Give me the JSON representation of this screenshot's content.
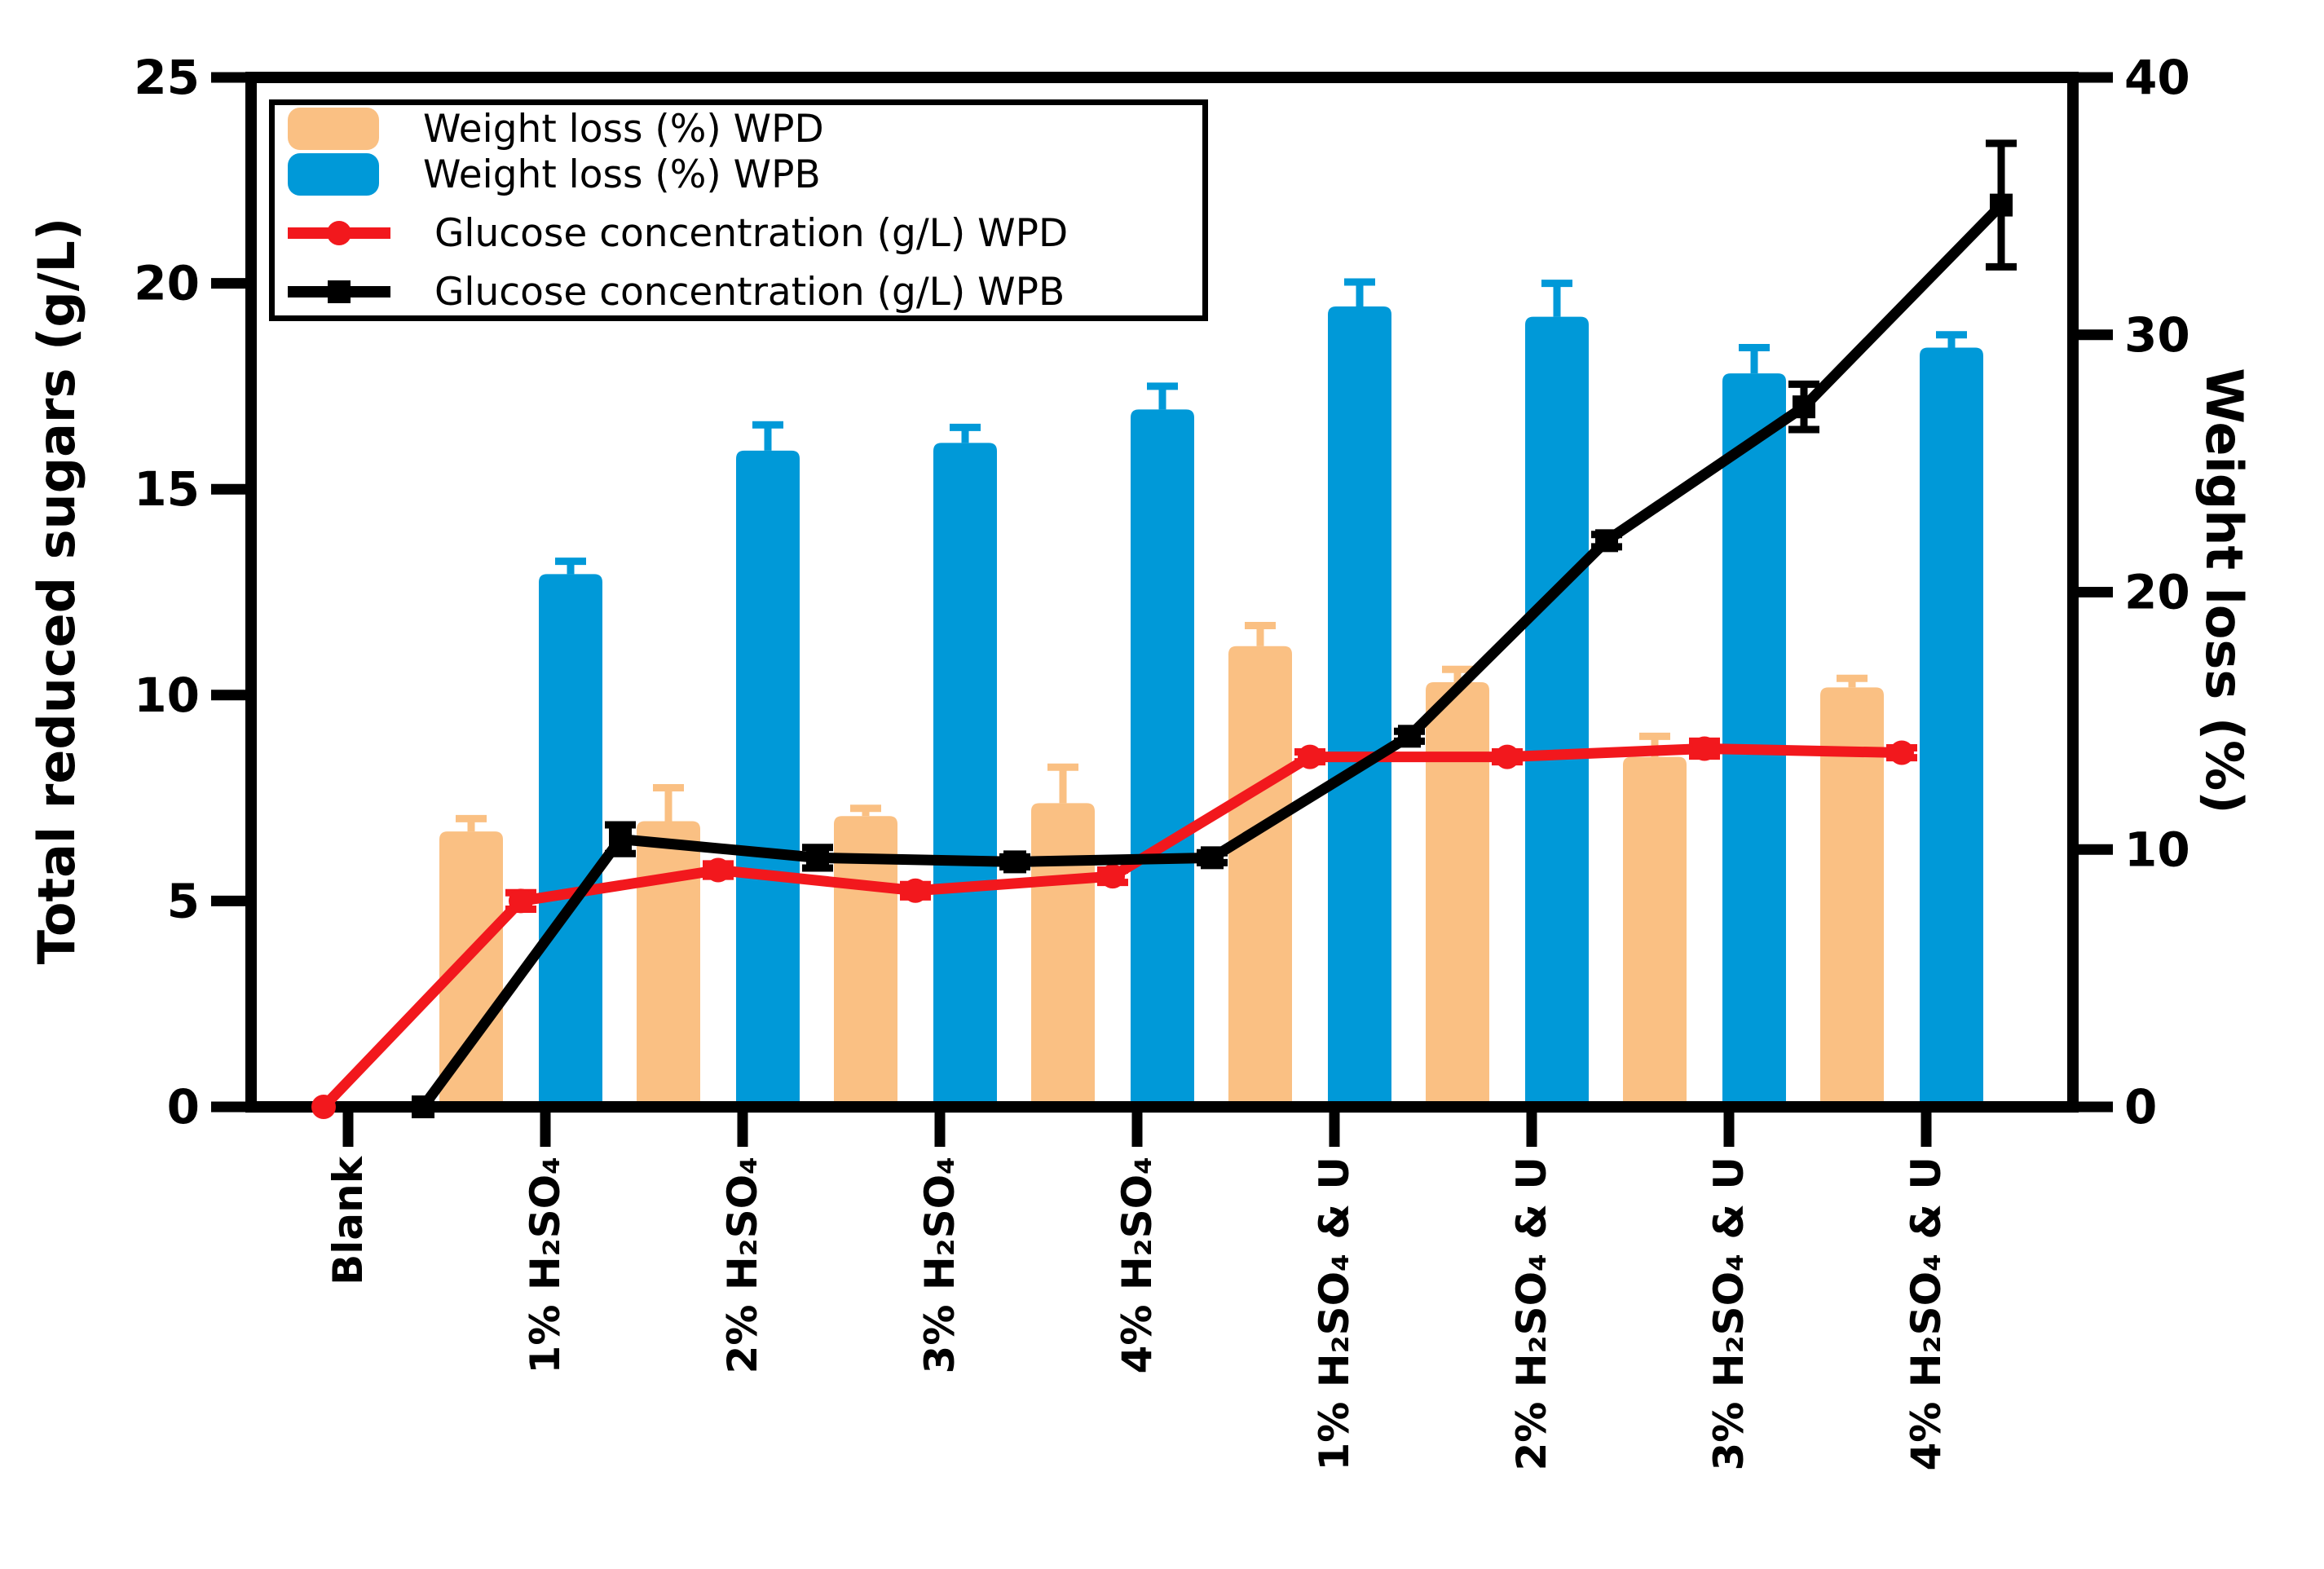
{
  "chart_data": {
    "type": "bar+line",
    "title": "",
    "categories": [
      "Blank",
      "1% H₂SO₄",
      "2% H₂SO₄",
      "3% H₂SO₄",
      "4% H₂SO₄",
      "1% H₂SO₄ & U",
      "2% H₂SO₄ & U",
      "3% H₂SO₄ & U",
      "4% H₂SO₄ & U"
    ],
    "y_left": {
      "label": "Total reduced sugars (g/L)",
      "min": 0,
      "max": 25,
      "ticks": [
        0,
        5,
        10,
        15,
        20,
        25
      ]
    },
    "y_right": {
      "label": "Weight loss (%)",
      "min": 0,
      "max": 40,
      "ticks": [
        0,
        10,
        20,
        30,
        40
      ]
    },
    "grid": false,
    "legend_position": "top-left",
    "series": [
      {
        "name": "Weight loss (%) WPD",
        "type": "bar",
        "axis": "right",
        "color": "#FAC083",
        "marker": "none",
        "values": [
          0,
          10.7,
          11.1,
          11.3,
          11.8,
          17.9,
          16.5,
          13.6,
          16.3
        ],
        "errors": [
          0,
          0.5,
          1.3,
          0.3,
          1.4,
          0.8,
          0.5,
          0.8,
          0.35
        ]
      },
      {
        "name": "Weight loss (%) WPB",
        "type": "bar",
        "axis": "right",
        "color": "#0099D8",
        "marker": "none",
        "values": [
          0,
          20.7,
          25.5,
          25.8,
          27.1,
          31.1,
          30.7,
          28.5,
          29.5
        ],
        "errors": [
          0,
          0.5,
          1.0,
          0.6,
          0.9,
          0.95,
          1.3,
          1.0,
          0.5
        ]
      },
      {
        "name": "Glucose concentration (g/L) WPD",
        "type": "line",
        "axis": "left",
        "color": "#F2181D",
        "marker": "circle",
        "values": [
          0,
          5.0,
          5.75,
          5.25,
          5.6,
          8.5,
          8.5,
          8.7,
          8.6
        ],
        "errors": [
          0,
          0.2,
          0.15,
          0.15,
          0.15,
          0.12,
          0.12,
          0.18,
          0.12
        ]
      },
      {
        "name": "Glucose concentration (g/L) WPB",
        "type": "line",
        "axis": "left",
        "color": "#000000",
        "marker": "square",
        "values": [
          0,
          6.5,
          6.05,
          5.95,
          6.05,
          9.0,
          13.75,
          17.0,
          21.9
        ],
        "errors": [
          0,
          0.35,
          0.25,
          0.12,
          0.12,
          0.12,
          0.15,
          0.55,
          1.5
        ]
      }
    ]
  }
}
